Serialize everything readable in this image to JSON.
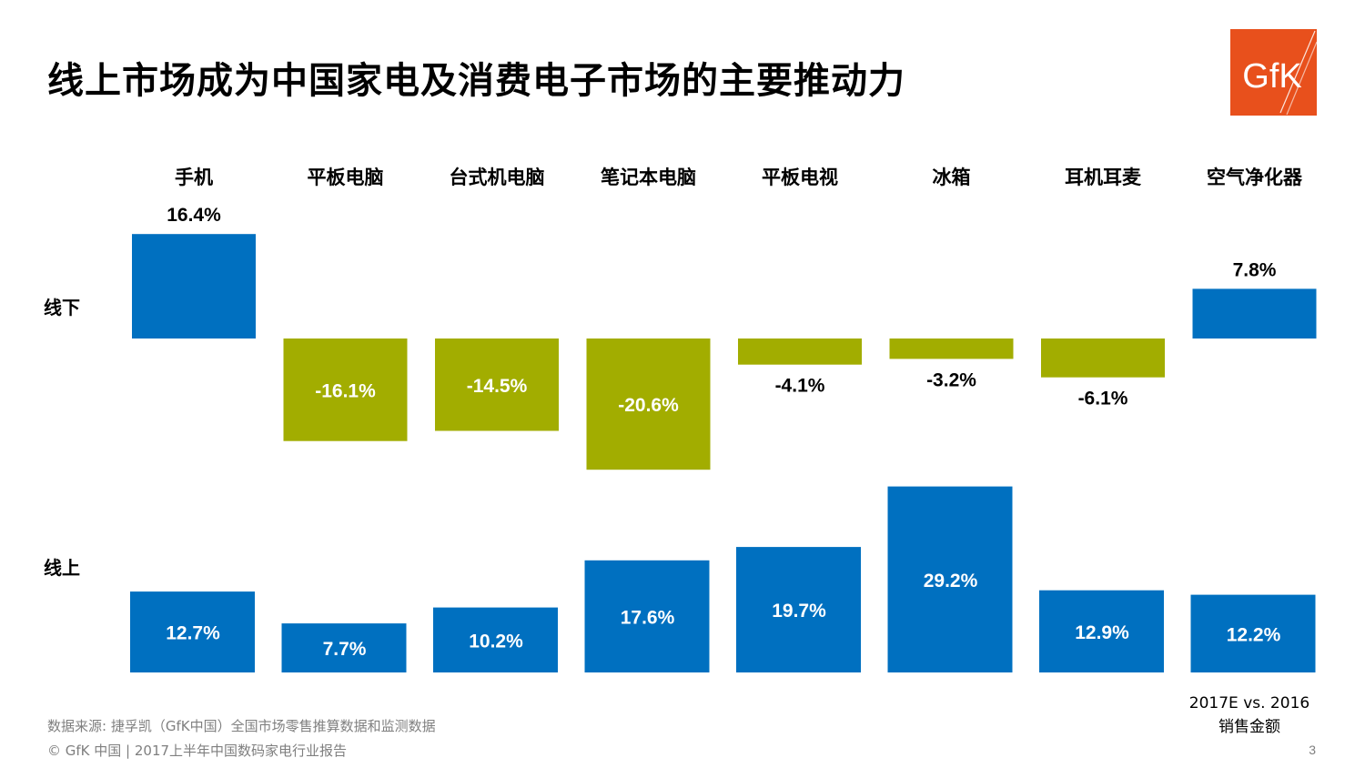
{
  "page": {
    "title": "线上市场成为中国家电及消费电子市场的主要推动力",
    "logo_text": "GfK",
    "source": "数据来源: 捷孚凯（GfK中国）全国市场零售推算数据和监测数据",
    "footer": "© GfK 中国 | 2017上半年中国数码家电行业报告",
    "page_number": "3",
    "legend_line1": "2017E vs. 2016",
    "legend_line2": "销售金额"
  },
  "colors": {
    "positive": "#0070c0",
    "negative": "#a2ad00",
    "logo_bg": "#e8501c"
  },
  "chart_data": {
    "type": "bar",
    "categories": [
      "手机",
      "平板电脑",
      "台式机电脑",
      "笔记本电脑",
      "平板电视",
      "冰箱",
      "耳机耳麦",
      "空气净化器"
    ],
    "series": [
      {
        "name": "线下",
        "values": [
          16.4,
          -16.1,
          -14.5,
          -20.6,
          -4.1,
          -3.2,
          -6.1,
          7.8
        ],
        "labels": [
          "16.4%",
          "-16.1%",
          "-14.5%",
          "-20.6%",
          "-4.1%",
          "-3.2%",
          "-6.1%",
          "7.8%"
        ]
      },
      {
        "name": "线上",
        "values": [
          12.7,
          7.7,
          10.2,
          17.6,
          19.7,
          29.2,
          12.9,
          12.2
        ],
        "labels": [
          "12.7%",
          "7.7%",
          "10.2%",
          "17.6%",
          "19.7%",
          "29.2%",
          "12.9%",
          "12.2%"
        ]
      }
    ],
    "unit": "%",
    "metric": "2017E vs. 2016 销售金额"
  }
}
